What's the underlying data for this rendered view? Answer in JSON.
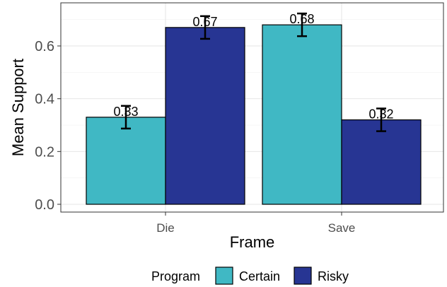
{
  "chart_data": {
    "type": "bar",
    "title": "",
    "xlabel": "Frame",
    "ylabel": "Mean Support",
    "categories": [
      "Die",
      "Save"
    ],
    "ylim": [
      0,
      0.72
    ],
    "yticks": [
      "0.0",
      "0.2",
      "0.4",
      "0.6"
    ],
    "grid": true,
    "legend_placement": "bottom",
    "legend_title": "Program",
    "series": [
      {
        "name": "Certain",
        "color": "#40b8c4",
        "values": [
          0.33,
          0.68
        ],
        "labels": [
          "0.33",
          "0.68"
        ],
        "error": [
          0.043,
          0.043
        ]
      },
      {
        "name": "Risky",
        "color": "#273593",
        "values": [
          0.67,
          0.32
        ],
        "labels": [
          "0.67",
          "0.32"
        ],
        "error": [
          0.043,
          0.043
        ]
      }
    ]
  }
}
